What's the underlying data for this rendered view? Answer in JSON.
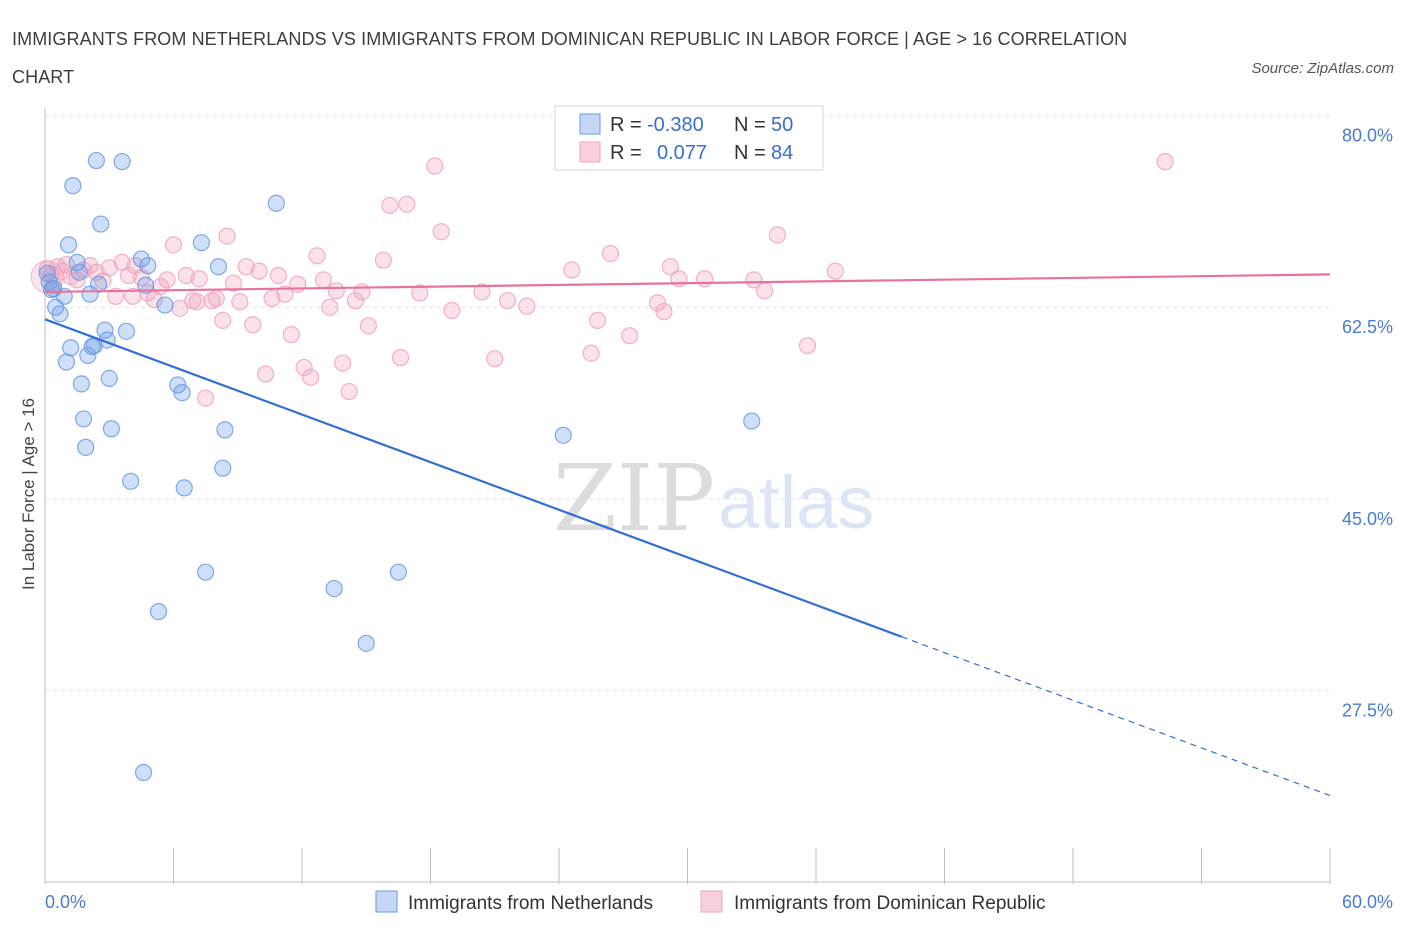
{
  "header": {
    "title": "IMMIGRANTS FROM NETHERLANDS VS IMMIGRANTS FROM DOMINICAN REPUBLIC IN LABOR FORCE | AGE > 16 CORRELATION CHART",
    "source": "Source: ZipAtlas.com"
  },
  "watermark": {
    "zip": "ZIP",
    "atlas": "atlas"
  },
  "legend_top": {
    "rows": [
      {
        "r_label": "R =",
        "r_value": "-0.380",
        "n_label": "N =",
        "n_value": "50"
      },
      {
        "r_label": "R =",
        "r_value": "0.077",
        "n_label": "N =",
        "n_value": "84"
      }
    ]
  },
  "chart_data": {
    "type": "scatter",
    "title": "IMMIGRANTS FROM NETHERLANDS VS IMMIGRANTS FROM DOMINICAN REPUBLIC IN LABOR FORCE | AGE > 16 CORRELATION CHART",
    "xlabel": "",
    "ylabel": "In Labor Force | Age > 16",
    "xlim": [
      0,
      60
    ],
    "ylim": [
      10,
      80.7
    ],
    "x_tick_labels": [
      "0.0%",
      "60.0%"
    ],
    "y_ticks": [
      {
        "value": 80.0,
        "label": "80.0%"
      },
      {
        "value": 62.5,
        "label": "62.5%"
      },
      {
        "value": 45.0,
        "label": "45.0%"
      },
      {
        "value": 27.5,
        "label": "27.5%"
      }
    ],
    "grid": true,
    "legend_placement": "bottom",
    "colors": {
      "netherlands": "#6b9be6",
      "dominican": "#f0a3bd",
      "blue_line": "#2e6fd4",
      "pink_line": "#e8729b"
    },
    "series": [
      {
        "name": "Immigrants from Netherlands",
        "r": -0.38,
        "n": 50,
        "trend": {
          "x0": 0,
          "y0": 61.4,
          "x1": 60,
          "y1": 17.9,
          "solid_until_x": 40
        },
        "points": [
          [
            0.1,
            65.6
          ],
          [
            0.2,
            64.8
          ],
          [
            0.3,
            64.1
          ],
          [
            0.5,
            62.5
          ],
          [
            0.7,
            61.9
          ],
          [
            0.9,
            63.5
          ],
          [
            1.0,
            57.5
          ],
          [
            1.1,
            68.2
          ],
          [
            1.2,
            58.8
          ],
          [
            1.3,
            73.6
          ],
          [
            1.5,
            66.6
          ],
          [
            1.6,
            65.7
          ],
          [
            1.7,
            55.5
          ],
          [
            1.8,
            52.3
          ],
          [
            1.9,
            49.7
          ],
          [
            2.0,
            58.1
          ],
          [
            2.1,
            63.7
          ],
          [
            2.2,
            58.9
          ],
          [
            2.4,
            75.9
          ],
          [
            2.5,
            64.6
          ],
          [
            2.6,
            70.1
          ],
          [
            2.8,
            60.4
          ],
          [
            2.9,
            59.5
          ],
          [
            3.0,
            56.0
          ],
          [
            3.1,
            51.4
          ],
          [
            3.6,
            75.8
          ],
          [
            3.8,
            60.3
          ],
          [
            4.0,
            46.6
          ],
          [
            4.5,
            66.9
          ],
          [
            4.7,
            64.5
          ],
          [
            4.8,
            66.3
          ],
          [
            4.6,
            20.0
          ],
          [
            5.3,
            34.7
          ],
          [
            5.6,
            62.7
          ],
          [
            6.2,
            55.4
          ],
          [
            6.4,
            54.7
          ],
          [
            6.5,
            46.0
          ],
          [
            7.3,
            68.4
          ],
          [
            7.5,
            38.3
          ],
          [
            8.1,
            66.2
          ],
          [
            8.3,
            47.8
          ],
          [
            8.4,
            51.3
          ],
          [
            10.8,
            72.0
          ],
          [
            13.5,
            36.8
          ],
          [
            15.0,
            31.8
          ],
          [
            16.5,
            38.3
          ],
          [
            24.2,
            50.8
          ],
          [
            33.0,
            52.1
          ],
          [
            0.4,
            64.2
          ],
          [
            2.3,
            59.0
          ]
        ]
      },
      {
        "name": "Immigrants from Dominican Republic",
        "r": 0.077,
        "n": 84,
        "trend": {
          "x0": 0,
          "y0": 63.9,
          "x1": 60,
          "y1": 65.5
        },
        "points": [
          [
            0.1,
            66.0
          ],
          [
            0.3,
            65.5
          ],
          [
            0.4,
            64.5
          ],
          [
            0.6,
            66.2
          ],
          [
            0.8,
            65.8
          ],
          [
            1.0,
            66.4
          ],
          [
            1.2,
            65.3
          ],
          [
            1.5,
            65.0
          ],
          [
            1.8,
            65.9
          ],
          [
            2.1,
            66.3
          ],
          [
            2.4,
            65.7
          ],
          [
            2.7,
            64.9
          ],
          [
            3.0,
            66.1
          ],
          [
            3.3,
            63.5
          ],
          [
            3.6,
            66.6
          ],
          [
            3.9,
            65.4
          ],
          [
            4.2,
            66.3
          ],
          [
            4.5,
            65.2
          ],
          [
            4.8,
            63.8
          ],
          [
            5.1,
            63.2
          ],
          [
            5.4,
            64.4
          ],
          [
            5.7,
            65.0
          ],
          [
            6.0,
            68.2
          ],
          [
            6.3,
            62.4
          ],
          [
            6.6,
            65.4
          ],
          [
            6.9,
            63.1
          ],
          [
            7.2,
            65.1
          ],
          [
            7.5,
            54.2
          ],
          [
            7.8,
            63.1
          ],
          [
            8.0,
            63.3
          ],
          [
            8.3,
            61.3
          ],
          [
            8.5,
            69.0
          ],
          [
            8.8,
            64.7
          ],
          [
            9.1,
            63.0
          ],
          [
            9.4,
            66.2
          ],
          [
            9.7,
            60.9
          ],
          [
            10.0,
            65.8
          ],
          [
            10.3,
            56.4
          ],
          [
            10.6,
            63.3
          ],
          [
            10.9,
            65.4
          ],
          [
            11.2,
            63.7
          ],
          [
            11.5,
            60.0
          ],
          [
            11.8,
            64.6
          ],
          [
            12.1,
            57.0
          ],
          [
            12.4,
            56.1
          ],
          [
            12.7,
            67.2
          ],
          [
            13.0,
            65.0
          ],
          [
            13.3,
            62.5
          ],
          [
            13.6,
            64.0
          ],
          [
            13.9,
            57.4
          ],
          [
            14.2,
            54.8
          ],
          [
            14.5,
            63.1
          ],
          [
            14.8,
            63.9
          ],
          [
            15.1,
            60.8
          ],
          [
            15.8,
            66.8
          ],
          [
            16.1,
            71.8
          ],
          [
            16.6,
            57.9
          ],
          [
            16.9,
            71.9
          ],
          [
            17.5,
            63.8
          ],
          [
            18.2,
            75.4
          ],
          [
            18.5,
            69.4
          ],
          [
            19.0,
            62.2
          ],
          [
            20.4,
            63.9
          ],
          [
            21.0,
            57.8
          ],
          [
            21.6,
            63.1
          ],
          [
            22.5,
            62.6
          ],
          [
            24.6,
            65.9
          ],
          [
            25.5,
            58.3
          ],
          [
            25.8,
            61.3
          ],
          [
            26.4,
            67.4
          ],
          [
            27.3,
            59.9
          ],
          [
            28.6,
            62.9
          ],
          [
            28.9,
            62.1
          ],
          [
            29.2,
            66.2
          ],
          [
            29.6,
            65.1
          ],
          [
            30.8,
            65.1
          ],
          [
            33.1,
            65.0
          ],
          [
            33.6,
            64.0
          ],
          [
            34.2,
            69.1
          ],
          [
            35.6,
            59.0
          ],
          [
            36.9,
            65.8
          ],
          [
            52.3,
            75.8
          ],
          [
            7.1,
            63.0
          ],
          [
            4.1,
            63.5
          ]
        ]
      }
    ]
  }
}
